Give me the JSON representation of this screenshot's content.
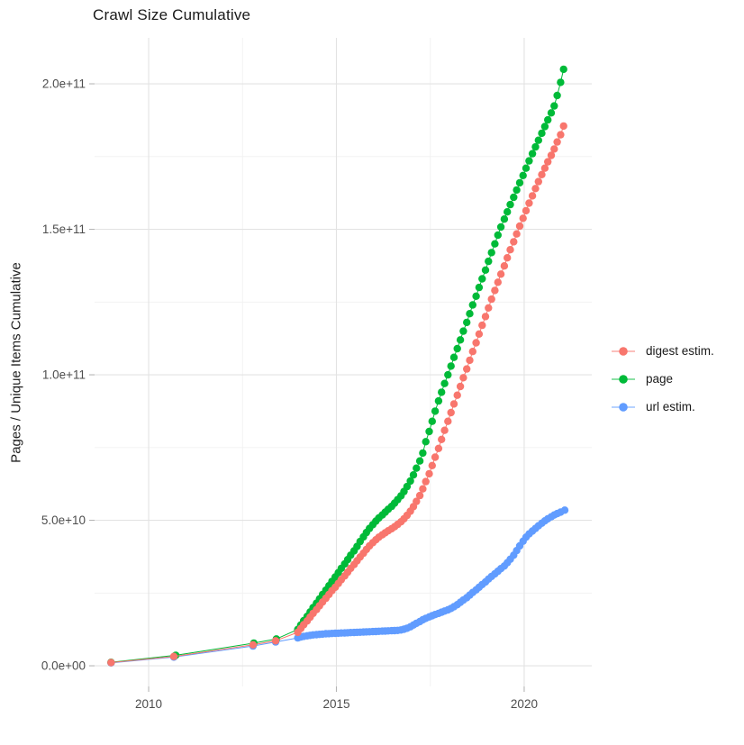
{
  "chart_data": {
    "type": "scatter",
    "title": "Crawl Size Cumulative",
    "xlabel": "",
    "ylabel": "Pages / Unique Items Cumulative",
    "value_unit": "billions of items (1e9); y tick labels shown in scientific notation",
    "legend_position": "right",
    "grid": "major and minor light-gray gridlines on white panel",
    "x_axis": {
      "min": 2008.56,
      "max": 2021.8,
      "ticks": [
        {
          "v": 2010,
          "label": "2010"
        },
        {
          "v": 2015,
          "label": "2015"
        },
        {
          "v": 2020,
          "label": "2020"
        }
      ],
      "minor": [
        2012.5,
        2017.5
      ]
    },
    "y_axis": {
      "min": -7.1,
      "max": 215.8,
      "ticks": [
        {
          "v": 0,
          "label": "0.0e+00"
        },
        {
          "v": 50,
          "label": "5.0e+10"
        },
        {
          "v": 100,
          "label": "1.0e+11"
        },
        {
          "v": 150,
          "label": "1.5e+11"
        },
        {
          "v": 200,
          "label": "2.0e+11"
        }
      ],
      "minor": [
        25,
        75,
        125,
        175
      ]
    },
    "draw_order": [
      2,
      1,
      0
    ],
    "series": [
      {
        "name": "digest estim.",
        "color": "#F8766D",
        "points": [
          [
            2009.0,
            1.1
          ],
          [
            2010.67,
            3.2
          ],
          [
            2012.78,
            7.2
          ],
          [
            2013.38,
            8.6
          ],
          [
            2013.97,
            11.5
          ],
          [
            2014.05,
            12.8
          ],
          [
            2014.13,
            14.1
          ],
          [
            2014.22,
            15.4
          ],
          [
            2014.3,
            16.7
          ],
          [
            2014.38,
            18.0
          ],
          [
            2014.47,
            19.3
          ],
          [
            2014.55,
            20.6
          ],
          [
            2014.63,
            21.9
          ],
          [
            2014.72,
            23.2
          ],
          [
            2014.8,
            24.5
          ],
          [
            2014.88,
            25.8
          ],
          [
            2014.97,
            27.0
          ],
          [
            2015.05,
            28.3
          ],
          [
            2015.13,
            29.6
          ],
          [
            2015.22,
            30.9
          ],
          [
            2015.3,
            32.2
          ],
          [
            2015.38,
            33.5
          ],
          [
            2015.47,
            34.8
          ],
          [
            2015.55,
            36.1
          ],
          [
            2015.63,
            37.4
          ],
          [
            2015.72,
            38.7
          ],
          [
            2015.8,
            40.0
          ],
          [
            2015.88,
            41.2
          ],
          [
            2015.97,
            42.3
          ],
          [
            2016.05,
            43.3
          ],
          [
            2016.13,
            44.2
          ],
          [
            2016.22,
            45.0
          ],
          [
            2016.3,
            45.7
          ],
          [
            2016.38,
            46.4
          ],
          [
            2016.47,
            47.1
          ],
          [
            2016.55,
            47.8
          ],
          [
            2016.63,
            48.6
          ],
          [
            2016.72,
            49.5
          ],
          [
            2016.8,
            50.5
          ],
          [
            2016.88,
            51.7
          ],
          [
            2016.97,
            53.1
          ],
          [
            2017.05,
            54.7
          ],
          [
            2017.13,
            56.5
          ],
          [
            2017.22,
            58.5
          ],
          [
            2017.3,
            60.8
          ],
          [
            2017.38,
            63.3
          ],
          [
            2017.47,
            66.0
          ],
          [
            2017.55,
            68.8
          ],
          [
            2017.63,
            71.7
          ],
          [
            2017.72,
            74.7
          ],
          [
            2017.8,
            77.8
          ],
          [
            2017.88,
            80.9
          ],
          [
            2017.97,
            84.0
          ],
          [
            2018.05,
            87.0
          ],
          [
            2018.13,
            90.0
          ],
          [
            2018.22,
            93.0
          ],
          [
            2018.3,
            96.0
          ],
          [
            2018.38,
            99.0
          ],
          [
            2018.47,
            102.0
          ],
          [
            2018.55,
            105.0
          ],
          [
            2018.63,
            108.0
          ],
          [
            2018.72,
            111.0
          ],
          [
            2018.8,
            114.0
          ],
          [
            2018.88,
            117.0
          ],
          [
            2018.97,
            120.0
          ],
          [
            2019.05,
            123.0
          ],
          [
            2019.13,
            126.0
          ],
          [
            2019.22,
            129.0
          ],
          [
            2019.3,
            131.8
          ],
          [
            2019.38,
            134.6
          ],
          [
            2019.47,
            137.4
          ],
          [
            2019.55,
            140.2
          ],
          [
            2019.63,
            143.0
          ],
          [
            2019.72,
            145.7
          ],
          [
            2019.8,
            148.4
          ],
          [
            2019.88,
            151.1
          ],
          [
            2019.97,
            153.8
          ],
          [
            2020.05,
            156.4
          ],
          [
            2020.13,
            159.0
          ],
          [
            2020.22,
            161.5
          ],
          [
            2020.3,
            164.0
          ],
          [
            2020.38,
            166.4
          ],
          [
            2020.47,
            168.8
          ],
          [
            2020.55,
            171.0
          ],
          [
            2020.63,
            173.2
          ],
          [
            2020.72,
            175.4
          ],
          [
            2020.8,
            177.6
          ],
          [
            2020.88,
            180.0
          ],
          [
            2020.97,
            182.5
          ],
          [
            2021.05,
            185.5
          ]
        ]
      },
      {
        "name": "page",
        "color": "#00BA38",
        "points": [
          [
            2009.0,
            1.2
          ],
          [
            2010.72,
            3.6
          ],
          [
            2012.8,
            7.8
          ],
          [
            2013.4,
            9.2
          ],
          [
            2013.97,
            12.5
          ],
          [
            2014.05,
            14.0
          ],
          [
            2014.13,
            15.5
          ],
          [
            2014.22,
            17.0
          ],
          [
            2014.3,
            18.5
          ],
          [
            2014.38,
            20.0
          ],
          [
            2014.47,
            21.5
          ],
          [
            2014.55,
            23.0
          ],
          [
            2014.63,
            24.5
          ],
          [
            2014.72,
            26.0
          ],
          [
            2014.8,
            27.5
          ],
          [
            2014.88,
            29.0
          ],
          [
            2014.97,
            30.5
          ],
          [
            2015.05,
            32.0
          ],
          [
            2015.13,
            33.5
          ],
          [
            2015.22,
            35.0
          ],
          [
            2015.3,
            36.5
          ],
          [
            2015.38,
            38.0
          ],
          [
            2015.47,
            39.5
          ],
          [
            2015.55,
            41.0
          ],
          [
            2015.63,
            42.7
          ],
          [
            2015.72,
            44.3
          ],
          [
            2015.8,
            45.8
          ],
          [
            2015.88,
            47.2
          ],
          [
            2015.97,
            48.5
          ],
          [
            2016.05,
            49.7
          ],
          [
            2016.13,
            50.8
          ],
          [
            2016.22,
            51.8
          ],
          [
            2016.3,
            52.8
          ],
          [
            2016.38,
            53.8
          ],
          [
            2016.47,
            54.8
          ],
          [
            2016.55,
            55.9
          ],
          [
            2016.63,
            57.1
          ],
          [
            2016.72,
            58.4
          ],
          [
            2016.8,
            59.9
          ],
          [
            2016.88,
            61.6
          ],
          [
            2016.97,
            63.5
          ],
          [
            2017.05,
            65.6
          ],
          [
            2017.13,
            67.9
          ],
          [
            2017.22,
            70.4
          ],
          [
            2017.3,
            73.1
          ],
          [
            2017.38,
            77.0
          ],
          [
            2017.47,
            80.5
          ],
          [
            2017.55,
            84.0
          ],
          [
            2017.63,
            87.5
          ],
          [
            2017.72,
            91.0
          ],
          [
            2017.8,
            94.0
          ],
          [
            2017.88,
            97.0
          ],
          [
            2017.97,
            100.0
          ],
          [
            2018.05,
            103.0
          ],
          [
            2018.13,
            106.0
          ],
          [
            2018.22,
            109.0
          ],
          [
            2018.3,
            112.0
          ],
          [
            2018.38,
            115.0
          ],
          [
            2018.47,
            118.0
          ],
          [
            2018.55,
            121.0
          ],
          [
            2018.63,
            124.0
          ],
          [
            2018.72,
            127.0
          ],
          [
            2018.8,
            130.0
          ],
          [
            2018.88,
            133.0
          ],
          [
            2018.97,
            136.0
          ],
          [
            2019.05,
            139.0
          ],
          [
            2019.13,
            142.0
          ],
          [
            2019.22,
            145.0
          ],
          [
            2019.3,
            148.0
          ],
          [
            2019.38,
            150.8
          ],
          [
            2019.47,
            153.5
          ],
          [
            2019.55,
            156.0
          ],
          [
            2019.63,
            158.5
          ],
          [
            2019.72,
            161.0
          ],
          [
            2019.8,
            163.5
          ],
          [
            2019.88,
            166.0
          ],
          [
            2019.97,
            168.5
          ],
          [
            2020.05,
            171.0
          ],
          [
            2020.13,
            173.5
          ],
          [
            2020.22,
            176.0
          ],
          [
            2020.3,
            178.3
          ],
          [
            2020.38,
            180.6
          ],
          [
            2020.47,
            183.0
          ],
          [
            2020.55,
            185.3
          ],
          [
            2020.63,
            187.6
          ],
          [
            2020.72,
            190.0
          ],
          [
            2020.8,
            192.4
          ],
          [
            2020.88,
            196.0
          ],
          [
            2020.97,
            200.5
          ],
          [
            2021.05,
            205.0
          ]
        ]
      },
      {
        "name": "url estim.",
        "color": "#619CFF",
        "points": [
          [
            2009.0,
            1.0
          ],
          [
            2010.67,
            3.0
          ],
          [
            2012.78,
            6.8
          ],
          [
            2013.38,
            8.2
          ],
          [
            2013.97,
            9.6
          ],
          [
            2014.05,
            9.9
          ],
          [
            2014.13,
            10.1
          ],
          [
            2014.22,
            10.3
          ],
          [
            2014.3,
            10.45
          ],
          [
            2014.38,
            10.6
          ],
          [
            2014.47,
            10.7
          ],
          [
            2014.55,
            10.8
          ],
          [
            2014.63,
            10.9
          ],
          [
            2014.72,
            11.0
          ],
          [
            2014.8,
            11.05
          ],
          [
            2014.88,
            11.1
          ],
          [
            2014.97,
            11.15
          ],
          [
            2015.05,
            11.2
          ],
          [
            2015.13,
            11.25
          ],
          [
            2015.22,
            11.3
          ],
          [
            2015.3,
            11.35
          ],
          [
            2015.38,
            11.4
          ],
          [
            2015.47,
            11.45
          ],
          [
            2015.55,
            11.5
          ],
          [
            2015.63,
            11.55
          ],
          [
            2015.72,
            11.6
          ],
          [
            2015.8,
            11.65
          ],
          [
            2015.88,
            11.7
          ],
          [
            2015.97,
            11.75
          ],
          [
            2016.05,
            11.8
          ],
          [
            2016.13,
            11.85
          ],
          [
            2016.22,
            11.9
          ],
          [
            2016.3,
            11.95
          ],
          [
            2016.38,
            12.0
          ],
          [
            2016.47,
            12.05
          ],
          [
            2016.55,
            12.1
          ],
          [
            2016.63,
            12.15
          ],
          [
            2016.72,
            12.3
          ],
          [
            2016.8,
            12.55
          ],
          [
            2016.88,
            12.9
          ],
          [
            2016.97,
            13.4
          ],
          [
            2017.05,
            14.0
          ],
          [
            2017.13,
            14.6
          ],
          [
            2017.22,
            15.2
          ],
          [
            2017.3,
            15.8
          ],
          [
            2017.38,
            16.3
          ],
          [
            2017.47,
            16.8
          ],
          [
            2017.55,
            17.2
          ],
          [
            2017.63,
            17.6
          ],
          [
            2017.72,
            18.0
          ],
          [
            2017.8,
            18.4
          ],
          [
            2017.88,
            18.8
          ],
          [
            2017.97,
            19.2
          ],
          [
            2018.05,
            19.7
          ],
          [
            2018.13,
            20.3
          ],
          [
            2018.22,
            21.0
          ],
          [
            2018.3,
            21.8
          ],
          [
            2018.38,
            22.6
          ],
          [
            2018.47,
            23.4
          ],
          [
            2018.55,
            24.3
          ],
          [
            2018.63,
            25.2
          ],
          [
            2018.72,
            26.1
          ],
          [
            2018.8,
            27.0
          ],
          [
            2018.88,
            27.9
          ],
          [
            2018.97,
            28.8
          ],
          [
            2019.05,
            29.8
          ],
          [
            2019.13,
            30.7
          ],
          [
            2019.22,
            31.6
          ],
          [
            2019.3,
            32.5
          ],
          [
            2019.38,
            33.4
          ],
          [
            2019.47,
            34.3
          ],
          [
            2019.55,
            35.4
          ],
          [
            2019.63,
            36.6
          ],
          [
            2019.72,
            38.0
          ],
          [
            2019.8,
            39.6
          ],
          [
            2019.88,
            41.2
          ],
          [
            2019.97,
            42.8
          ],
          [
            2020.05,
            44.2
          ],
          [
            2020.13,
            45.3
          ],
          [
            2020.22,
            46.3
          ],
          [
            2020.3,
            47.2
          ],
          [
            2020.38,
            48.1
          ],
          [
            2020.47,
            49.0
          ],
          [
            2020.55,
            49.8
          ],
          [
            2020.63,
            50.5
          ],
          [
            2020.72,
            51.2
          ],
          [
            2020.8,
            51.8
          ],
          [
            2020.88,
            52.3
          ],
          [
            2020.97,
            52.8
          ],
          [
            2021.08,
            53.5
          ]
        ]
      }
    ]
  }
}
